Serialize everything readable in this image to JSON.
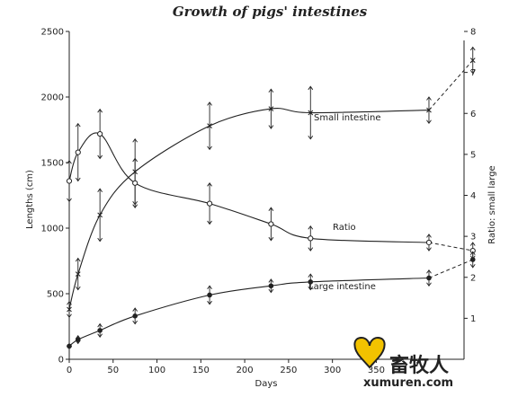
{
  "chart_data": {
    "type": "line",
    "title": "Growth of pigs' intestines",
    "xlabel": "Days",
    "ylabel_left": "Lengths (cm)",
    "ylabel_right": "Ratio: small large",
    "xlim": [
      0,
      450
    ],
    "ylim_left": [
      0,
      2500
    ],
    "ylim_right": [
      0,
      8
    ],
    "x_ticks": [
      0,
      50,
      100,
      150,
      200,
      250,
      300,
      350
    ],
    "y_left_ticks": [
      0,
      500,
      1000,
      1500,
      2000,
      2500
    ],
    "y_right_ticks": [
      1,
      2,
      3,
      4,
      5,
      6,
      7,
      8
    ],
    "grid": false,
    "series": [
      {
        "name": "Small intestine",
        "axis": "left",
        "marker": "x",
        "x": [
          0,
          10,
          35,
          75,
          160,
          230,
          275,
          410
        ],
        "y": [
          380,
          650,
          1100,
          1430,
          1780,
          1910,
          1880,
          1900
        ],
        "err": [
          60,
          120,
          200,
          250,
          180,
          150,
          200,
          100
        ],
        "extension": {
          "x": [
            410,
            460
          ],
          "y": [
            1900,
            2280
          ]
        }
      },
      {
        "name": "Ratio",
        "axis": "right",
        "marker": "o",
        "x": [
          0,
          10,
          35,
          75,
          160,
          230,
          275,
          410
        ],
        "y": [
          4.35,
          5.05,
          5.5,
          4.3,
          3.8,
          3.3,
          2.95,
          2.85
        ],
        "err": [
          0.5,
          0.7,
          0.6,
          0.6,
          0.5,
          0.4,
          0.3,
          0.2
        ],
        "extension": {
          "x": [
            410,
            460
          ],
          "y": [
            2.85,
            2.65
          ]
        }
      },
      {
        "name": "Large intestine",
        "axis": "left",
        "marker": "●",
        "x": [
          0,
          10,
          35,
          75,
          160,
          230,
          275,
          410
        ],
        "y": [
          100,
          150,
          220,
          330,
          490,
          560,
          590,
          620
        ],
        "err": [
          20,
          30,
          50,
          60,
          70,
          50,
          60,
          60
        ],
        "extension": {
          "x": [
            410,
            460
          ],
          "y": [
            620,
            760
          ]
        }
      }
    ]
  },
  "watermark": {
    "text_cn": "畜牧人",
    "text_en": "xumuren.com",
    "badge": "牧人论坛"
  }
}
